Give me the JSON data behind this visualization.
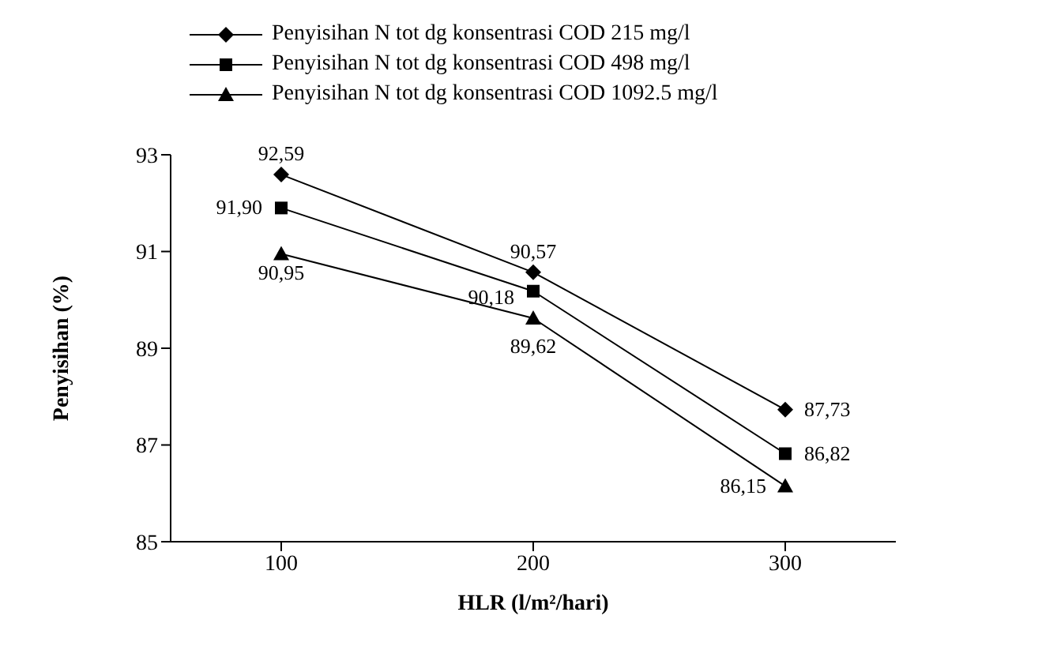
{
  "chart_data": {
    "type": "line",
    "xlabel": "HLR (l/m²/hari)",
    "ylabel": "Penyisihan (%)",
    "categories": [
      "100",
      "200",
      "300"
    ],
    "ylim": [
      85,
      93
    ],
    "yticks": [
      85,
      87,
      89,
      91,
      93
    ],
    "grid": false,
    "legend": "top",
    "line_style": "solid",
    "series": [
      {
        "name": "Penyisihan N tot dg konsentrasi COD 215 mg/l",
        "color": "#000000",
        "marker": "diamond",
        "values": [
          92.59,
          90.57,
          87.73
        ],
        "value_labels": [
          "92,59",
          "90,57",
          "87,73"
        ]
      },
      {
        "name": "Penyisihan N tot dg konsentrasi COD 498 mg/l",
        "color": "#000000",
        "marker": "square",
        "values": [
          91.9,
          90.18,
          86.82
        ],
        "value_labels": [
          "91,90",
          "90,18",
          "86,82"
        ]
      },
      {
        "name": "Penyisihan N tot dg konsentrasi COD 1092.5 mg/l",
        "color": "#000000",
        "marker": "triangle",
        "values": [
          90.95,
          89.62,
          86.15
        ],
        "value_labels": [
          "90,95",
          "89,62",
          "86,15"
        ]
      }
    ]
  }
}
